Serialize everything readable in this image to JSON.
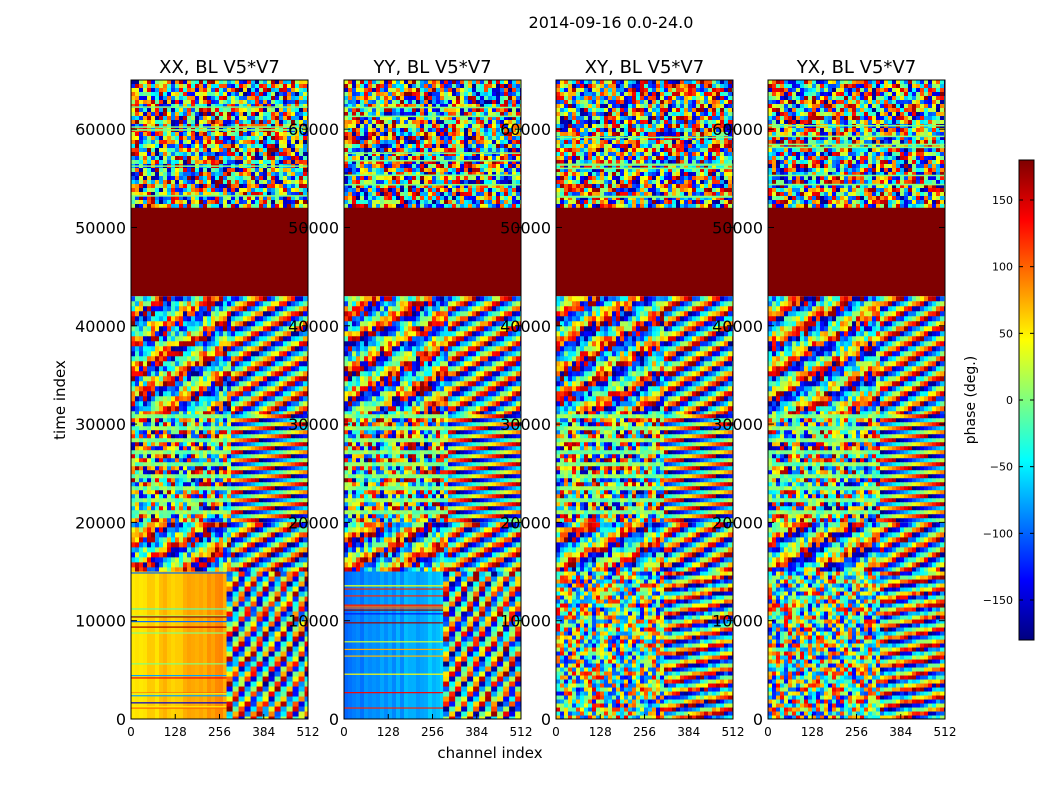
{
  "chart_data": {
    "type": "heatmap",
    "title": "2014-09-16 0.0-24.0",
    "xlabel": "channel index",
    "ylabel": "time index",
    "xlim": [
      0,
      512
    ],
    "ylim": [
      0,
      65000
    ],
    "xticks": [
      0,
      128,
      256,
      384,
      512
    ],
    "yticks": [
      0,
      10000,
      20000,
      30000,
      40000,
      50000,
      60000
    ],
    "colormap": "jet",
    "colorbar": {
      "label": "phase (deg.)",
      "range": [
        -180,
        180
      ],
      "ticks": [
        -150,
        -100,
        -50,
        0,
        50,
        100,
        150
      ],
      "tick_labels": [
        "−150",
        "−100",
        "−50",
        "0",
        "50",
        "100",
        "150"
      ]
    },
    "panels": [
      {
        "title": "XX, BL V5*V7",
        "polarization": "XX",
        "low_band_phase_deg": 55
      },
      {
        "title": "YY, BL V5*V7",
        "polarization": "YY",
        "low_band_phase_deg": -95
      },
      {
        "title": "XY, BL V5*V7",
        "polarization": "XY",
        "low_band_phase_deg": null
      },
      {
        "title": "YX, BL V5*V7",
        "polarization": "YX",
        "low_band_phase_deg": null
      }
    ],
    "flagged_time_range": [
      43000,
      52000
    ],
    "flagged_phase_deg": 180,
    "regions": [
      {
        "from": 52000,
        "to": 65000,
        "kind": "noise"
      },
      {
        "from": 43000,
        "to": 52000,
        "kind": "flagged"
      },
      {
        "from": 31000,
        "to": 43000,
        "kind": "fringes"
      },
      {
        "from": 20000,
        "to": 31000,
        "kind": "striped"
      },
      {
        "from": 15000,
        "to": 20000,
        "kind": "fringes"
      },
      {
        "from": 0,
        "to": 15000,
        "kind": "calibrated"
      }
    ]
  },
  "colors": {
    "flagged": "#7f0000",
    "background": "#ffffff"
  }
}
